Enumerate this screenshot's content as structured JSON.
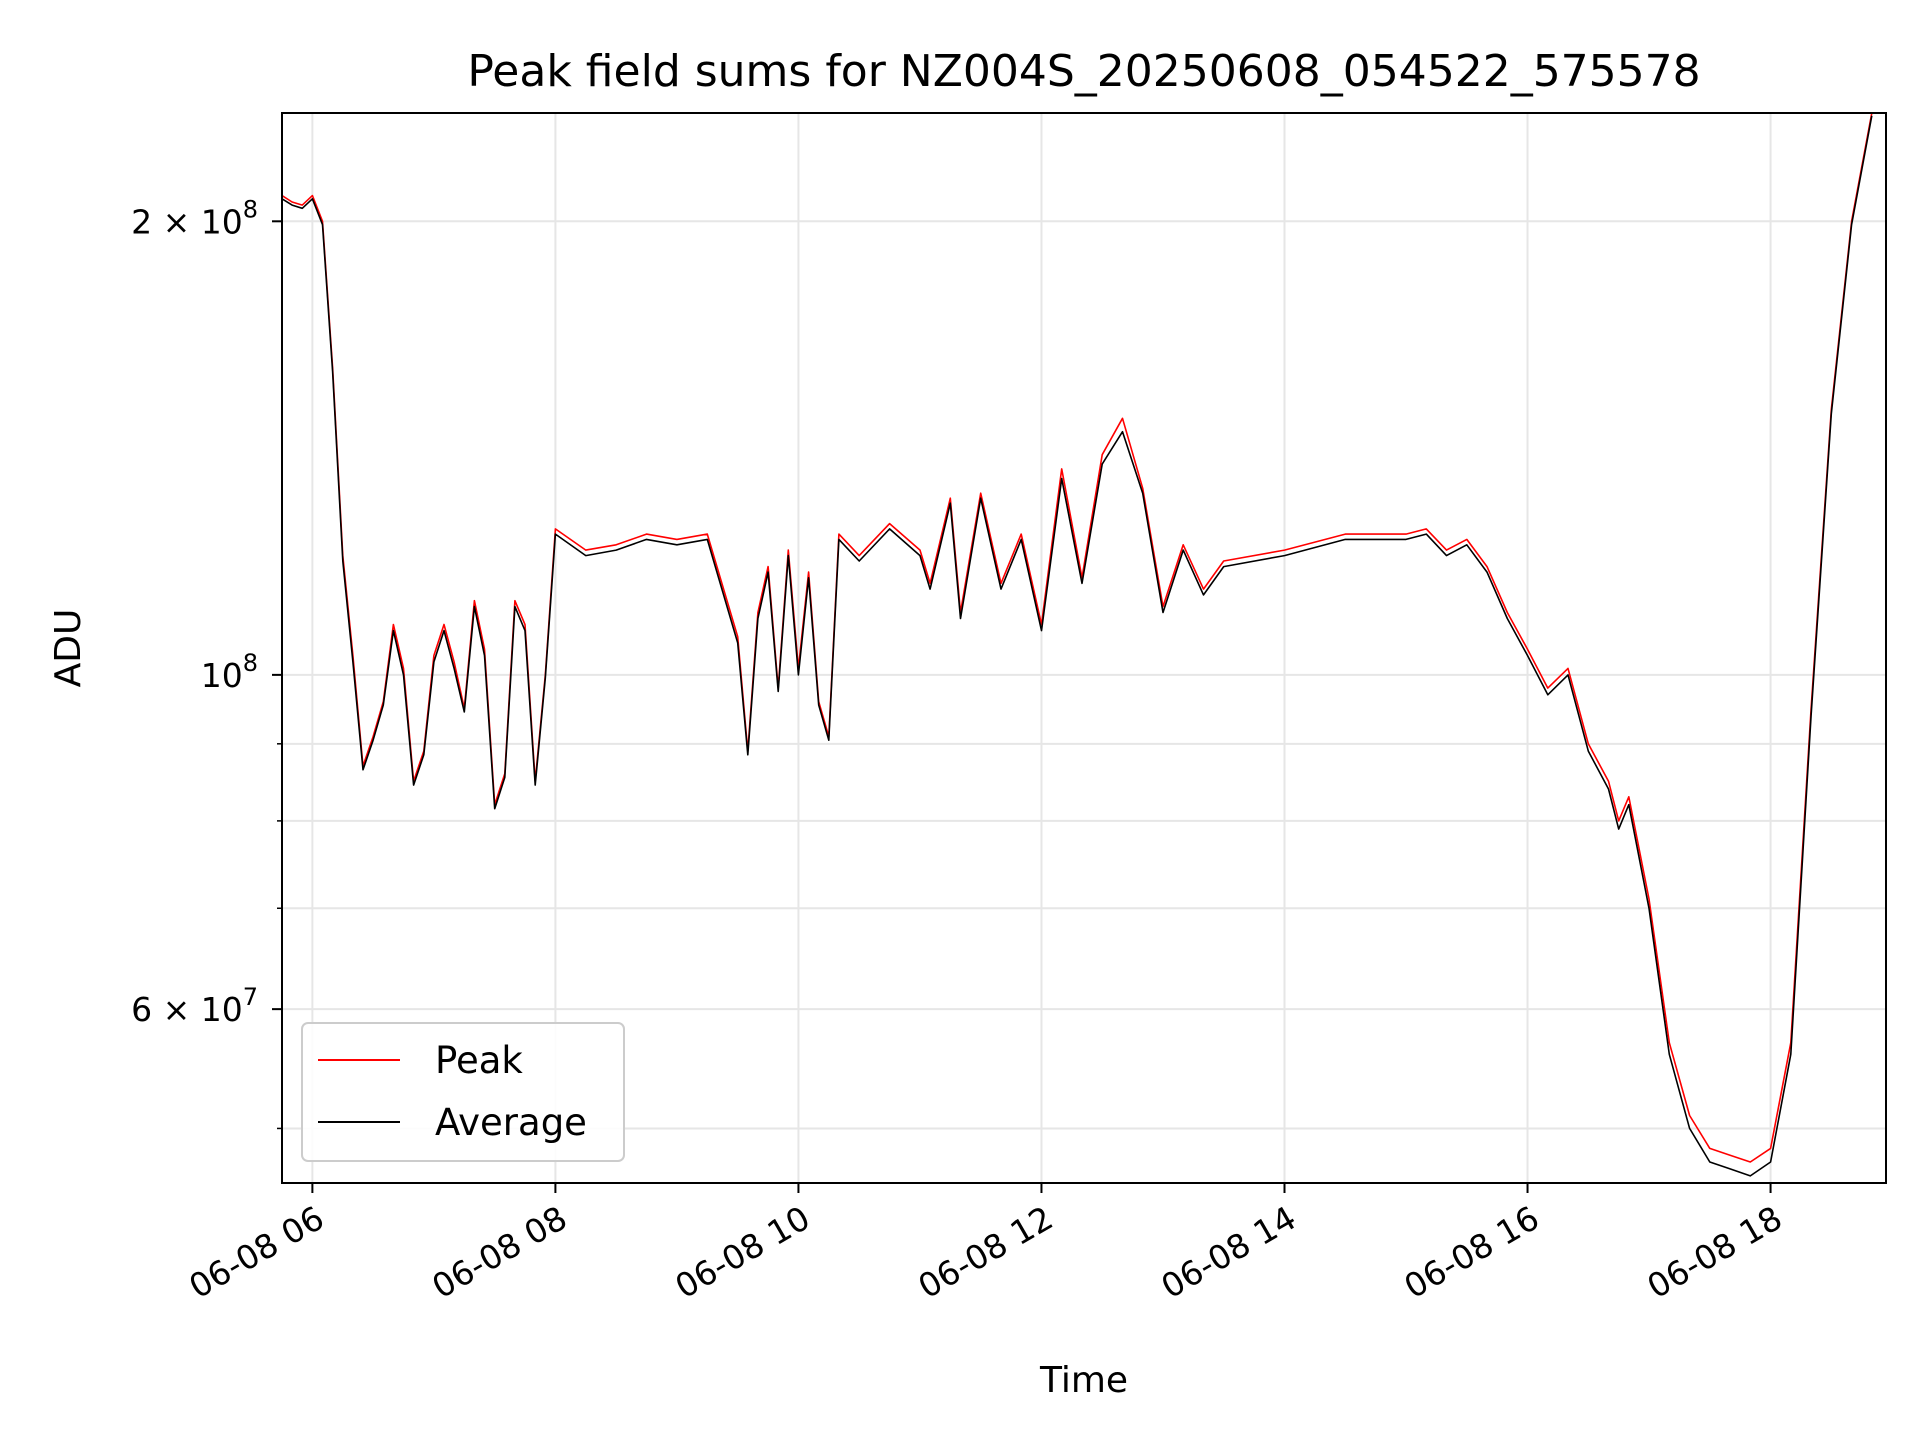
{
  "chart_data": {
    "type": "line",
    "title": "Peak field sums for NZ004S_20250608_054522_575578",
    "xlabel": "Time",
    "ylabel": "ADU",
    "y_scale": "log",
    "ylim": [
      46000000,
      236000000
    ],
    "xlim": [
      "06-08 05:45",
      "06-08 18:57"
    ],
    "grid": true,
    "legend_position": "lower-left",
    "x_ticks": [
      {
        "label": "06-08 06",
        "value": "06-08 06:00"
      },
      {
        "label": "06-08 08",
        "value": "06-08 08:00"
      },
      {
        "label": "06-08 10",
        "value": "06-08 10:00"
      },
      {
        "label": "06-08 12",
        "value": "06-08 12:00"
      },
      {
        "label": "06-08 14",
        "value": "06-08 14:00"
      },
      {
        "label": "06-08 16",
        "value": "06-08 16:00"
      },
      {
        "label": "06-08 18",
        "value": "06-08 18:00"
      }
    ],
    "y_major_ticks": [
      {
        "label_base": "2 × 10",
        "label_exp": "8",
        "value": 200000000
      },
      {
        "label_base": "10",
        "label_exp": "8",
        "value": 100000000
      },
      {
        "label_base": "6 × 10",
        "label_exp": "7",
        "value": 60000000
      }
    ],
    "y_minor_ticks": [
      50000000,
      70000000,
      80000000,
      90000000
    ],
    "series": [
      {
        "name": "Peak",
        "color": "#ff0000",
        "x": [
          "06-08 05:45",
          "06-08 05:50",
          "06-08 05:55",
          "06-08 06:00",
          "06-08 06:05",
          "06-08 06:10",
          "06-08 06:15",
          "06-08 06:20",
          "06-08 06:25",
          "06-08 06:30",
          "06-08 06:35",
          "06-08 06:40",
          "06-08 06:45",
          "06-08 06:50",
          "06-08 06:55",
          "06-08 07:00",
          "06-08 07:05",
          "06-08 07:10",
          "06-08 07:15",
          "06-08 07:20",
          "06-08 07:25",
          "06-08 07:30",
          "06-08 07:35",
          "06-08 07:40",
          "06-08 07:45",
          "06-08 07:50",
          "06-08 07:55",
          "06-08 08:00",
          "06-08 08:15",
          "06-08 08:30",
          "06-08 08:45",
          "06-08 09:00",
          "06-08 09:15",
          "06-08 09:30",
          "06-08 09:35",
          "06-08 09:40",
          "06-08 09:45",
          "06-08 09:50",
          "06-08 09:55",
          "06-08 10:00",
          "06-08 10:05",
          "06-08 10:10",
          "06-08 10:15",
          "06-08 10:20",
          "06-08 10:30",
          "06-08 10:45",
          "06-08 11:00",
          "06-08 11:05",
          "06-08 11:15",
          "06-08 11:20",
          "06-08 11:30",
          "06-08 11:40",
          "06-08 11:50",
          "06-08 12:00",
          "06-08 12:10",
          "06-08 12:20",
          "06-08 12:30",
          "06-08 12:40",
          "06-08 12:50",
          "06-08 13:00",
          "06-08 13:10",
          "06-08 13:20",
          "06-08 13:30",
          "06-08 14:00",
          "06-08 14:30",
          "06-08 15:00",
          "06-08 15:10",
          "06-08 15:20",
          "06-08 15:30",
          "06-08 15:40",
          "06-08 15:50",
          "06-08 16:00",
          "06-08 16:10",
          "06-08 16:20",
          "06-08 16:30",
          "06-08 16:40",
          "06-08 16:45",
          "06-08 16:50",
          "06-08 17:00",
          "06-08 17:10",
          "06-08 17:20",
          "06-08 17:30",
          "06-08 17:40",
          "06-08 17:50",
          "06-08 18:00",
          "06-08 18:10",
          "06-08 18:20",
          "06-08 18:30",
          "06-08 18:40",
          "06-08 18:50"
        ],
        "values": [
          208000000,
          206000000,
          205000000,
          208000000,
          200000000,
          160000000,
          120000000,
          103000000,
          87000000,
          91000000,
          96000000,
          108000000,
          101000000,
          85000000,
          89000000,
          103000000,
          108000000,
          102000000,
          95000000,
          112000000,
          104000000,
          82000000,
          86000000,
          112000000,
          108000000,
          85000000,
          100000000,
          125000000,
          121000000,
          122000000,
          124000000,
          123000000,
          124000000,
          106000000,
          89000000,
          110000000,
          118000000,
          98000000,
          121000000,
          101000000,
          117000000,
          96000000,
          91000000,
          124000000,
          120000000,
          126000000,
          121000000,
          115000000,
          131000000,
          110000000,
          132000000,
          115000000,
          124000000,
          108000000,
          137000000,
          116000000,
          140000000,
          148000000,
          133000000,
          111000000,
          122000000,
          114000000,
          119000000,
          121000000,
          124000000,
          124000000,
          125000000,
          121000000,
          123000000,
          118000000,
          110000000,
          104000000,
          98000000,
          101000000,
          90000000,
          85000000,
          80000000,
          83000000,
          71000000,
          57000000,
          51000000,
          48500000,
          48000000,
          47500000,
          48500000,
          57000000,
          95000000,
          150000000,
          200000000,
          236000000
        ]
      },
      {
        "name": "Average",
        "color": "#000000",
        "x": [
          "06-08 05:45",
          "06-08 05:50",
          "06-08 05:55",
          "06-08 06:00",
          "06-08 06:05",
          "06-08 06:10",
          "06-08 06:15",
          "06-08 06:20",
          "06-08 06:25",
          "06-08 06:30",
          "06-08 06:35",
          "06-08 06:40",
          "06-08 06:45",
          "06-08 06:50",
          "06-08 06:55",
          "06-08 07:00",
          "06-08 07:05",
          "06-08 07:10",
          "06-08 07:15",
          "06-08 07:20",
          "06-08 07:25",
          "06-08 07:30",
          "06-08 07:35",
          "06-08 07:40",
          "06-08 07:45",
          "06-08 07:50",
          "06-08 07:55",
          "06-08 08:00",
          "06-08 08:15",
          "06-08 08:30",
          "06-08 08:45",
          "06-08 09:00",
          "06-08 09:15",
          "06-08 09:30",
          "06-08 09:35",
          "06-08 09:40",
          "06-08 09:45",
          "06-08 09:50",
          "06-08 09:55",
          "06-08 10:00",
          "06-08 10:05",
          "06-08 10:10",
          "06-08 10:15",
          "06-08 10:20",
          "06-08 10:30",
          "06-08 10:45",
          "06-08 11:00",
          "06-08 11:05",
          "06-08 11:15",
          "06-08 11:20",
          "06-08 11:30",
          "06-08 11:40",
          "06-08 11:50",
          "06-08 12:00",
          "06-08 12:10",
          "06-08 12:20",
          "06-08 12:30",
          "06-08 12:40",
          "06-08 12:50",
          "06-08 13:00",
          "06-08 13:10",
          "06-08 13:20",
          "06-08 13:30",
          "06-08 14:00",
          "06-08 14:30",
          "06-08 15:00",
          "06-08 15:10",
          "06-08 15:20",
          "06-08 15:30",
          "06-08 15:40",
          "06-08 15:50",
          "06-08 16:00",
          "06-08 16:10",
          "06-08 16:20",
          "06-08 16:30",
          "06-08 16:40",
          "06-08 16:45",
          "06-08 16:50",
          "06-08 17:00",
          "06-08 17:10",
          "06-08 17:20",
          "06-08 17:30",
          "06-08 17:40",
          "06-08 17:50",
          "06-08 18:00",
          "06-08 18:10",
          "06-08 18:20",
          "06-08 18:30",
          "06-08 18:40",
          "06-08 18:50"
        ],
        "values": [
          207000000,
          205000000,
          204000000,
          207000000,
          199000000,
          159000000,
          119000000,
          102000000,
          86500000,
          90500000,
          95500000,
          107000000,
          100000000,
          84500000,
          88500000,
          102000000,
          107000000,
          101000000,
          94500000,
          111000000,
          103000000,
          81500000,
          85500000,
          111000000,
          107000000,
          84500000,
          99500000,
          124000000,
          120000000,
          121000000,
          123000000,
          122000000,
          123000000,
          105000000,
          88500000,
          109000000,
          117000000,
          97500000,
          120000000,
          100000000,
          116000000,
          95500000,
          90500000,
          123000000,
          119000000,
          125000000,
          120000000,
          114000000,
          130000000,
          109000000,
          131000000,
          114000000,
          123000000,
          107000000,
          135000000,
          115000000,
          138000000,
          145000000,
          132000000,
          110000000,
          121000000,
          113000000,
          118000000,
          120000000,
          123000000,
          123000000,
          124000000,
          120000000,
          122000000,
          117000000,
          109000000,
          103000000,
          97000000,
          100000000,
          89000000,
          84000000,
          79000000,
          82000000,
          70000000,
          56000000,
          50000000,
          47500000,
          47000000,
          46500000,
          47500000,
          56000000,
          94000000,
          149000000,
          199000000,
          235000000
        ]
      }
    ]
  }
}
